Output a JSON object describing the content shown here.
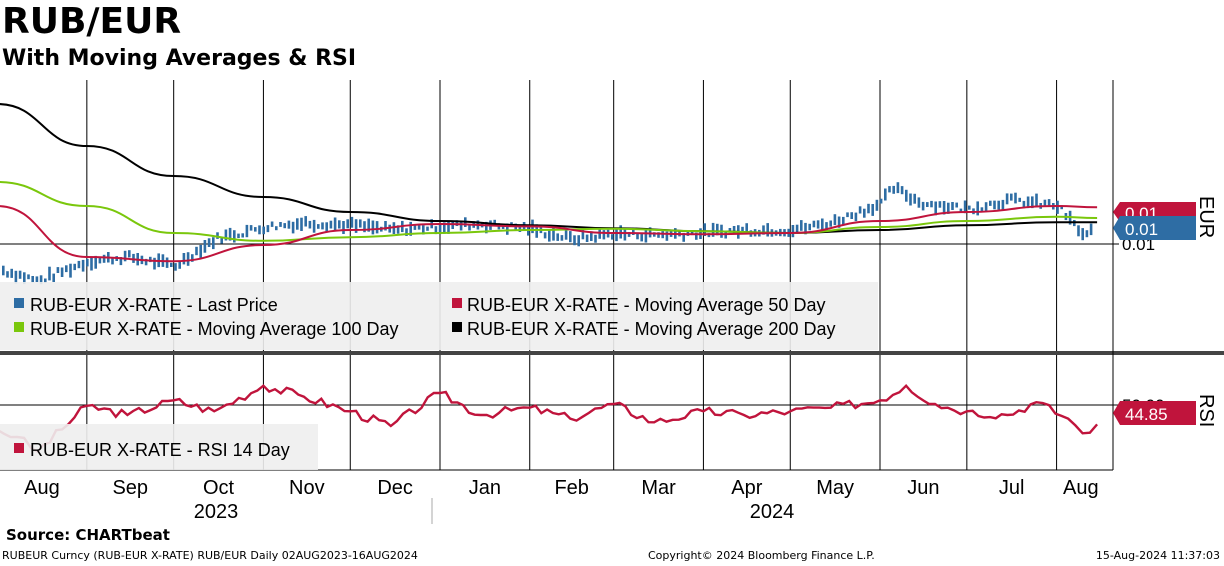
{
  "header": {
    "title": "RUB/EUR",
    "subtitle": "With Moving Averages & RSI"
  },
  "footer": {
    "source": "Source:  CHARTbeat",
    "security": "RUBEUR Curncy (RUB-EUR X-RATE) RUB/EUR  Daily 02AUG2023-16AUG2024",
    "copyright": "Copyright© 2024 Bloomberg Finance L.P.",
    "timestamp": "15-Aug-2024 11:37:03"
  },
  "chart_data": [
    {
      "type": "line",
      "panel": "price",
      "x_axis": {
        "months": [
          "Aug",
          "Sep",
          "Oct",
          "Nov",
          "Dec",
          "Jan",
          "Feb",
          "Mar",
          "Apr",
          "May",
          "Jun",
          "Jul",
          "Aug"
        ],
        "years": [
          "2023",
          "2024"
        ]
      },
      "y_axis": {
        "side": "right",
        "tick_labels": [
          "0.01"
        ],
        "unit_label": "EUR"
      },
      "grid": true,
      "legend_position": "bottom-left",
      "last_value_labels": [
        "0.01",
        "0.01"
      ],
      "series": [
        {
          "name": "RUB-EUR X-RATE - Last Price",
          "style": "bars",
          "color": "#2e6da4",
          "x": [
            "2023-08-01",
            "2023-08-15",
            "2023-09-01",
            "2023-09-15",
            "2023-10-01",
            "2023-10-15",
            "2023-11-01",
            "2023-11-15",
            "2023-12-01",
            "2023-12-15",
            "2024-01-01",
            "2024-01-15",
            "2024-02-01",
            "2024-02-15",
            "2024-03-01",
            "2024-03-15",
            "2024-04-01",
            "2024-04-15",
            "2024-05-01",
            "2024-05-15",
            "2024-06-01",
            "2024-06-05",
            "2024-06-15",
            "2024-07-01",
            "2024-07-15",
            "2024-08-01",
            "2024-08-10",
            "2024-08-15"
          ],
          "values": [
            0.00935,
            0.00915,
            0.00948,
            0.00955,
            0.0094,
            0.00985,
            0.01005,
            0.01012,
            0.01008,
            0.01,
            0.01006,
            0.0101,
            0.01002,
            0.00985,
            0.00994,
            0.00992,
            0.00995,
            0.01,
            0.01,
            0.01012,
            0.01045,
            0.0107,
            0.01045,
            0.01035,
            0.0105,
            0.0104,
            0.0099,
            0.01005
          ]
        },
        {
          "name": "RUB-EUR X-RATE - Moving Average 50 Day",
          "color": "#c0143c",
          "x": [
            "2023-08-01",
            "2023-09-01",
            "2023-10-01",
            "2023-11-01",
            "2023-12-01",
            "2024-01-01",
            "2024-02-01",
            "2024-03-01",
            "2024-04-01",
            "2024-05-01",
            "2024-06-01",
            "2024-07-01",
            "2024-08-01",
            "2024-08-15"
          ],
          "values": [
            0.0104,
            0.00955,
            0.00948,
            0.00975,
            0.01,
            0.0101,
            0.01006,
            0.00995,
            0.00993,
            0.00995,
            0.01015,
            0.0103,
            0.0104,
            0.01038
          ]
        },
        {
          "name": "RUB-EUR X-RATE - Moving Average 100 Day",
          "color": "#7ac70c",
          "x": [
            "2023-08-01",
            "2023-09-01",
            "2023-10-01",
            "2023-11-01",
            "2023-12-01",
            "2024-01-01",
            "2024-02-01",
            "2024-03-01",
            "2024-04-01",
            "2024-05-01",
            "2024-06-01",
            "2024-07-01",
            "2024-08-01",
            "2024-08-15"
          ],
          "values": [
            0.0108,
            0.0104,
            0.00995,
            0.00982,
            0.00988,
            0.00995,
            0.01,
            0.01002,
            0.00998,
            0.00995,
            0.01005,
            0.01015,
            0.01022,
            0.0102
          ]
        },
        {
          "name": "RUB-EUR X-RATE - Moving Average 200 Day",
          "color": "#000000",
          "x": [
            "2023-08-01",
            "2023-09-01",
            "2023-10-01",
            "2023-11-01",
            "2023-12-01",
            "2024-01-01",
            "2024-02-01",
            "2024-03-01",
            "2024-04-01",
            "2024-05-01",
            "2024-06-01",
            "2024-07-01",
            "2024-08-01",
            "2024-08-15"
          ],
          "values": [
            0.0121,
            0.0114,
            0.0109,
            0.01055,
            0.0103,
            0.01015,
            0.01008,
            0.01003,
            0.00998,
            0.00995,
            0.01,
            0.01008,
            0.01013,
            0.01013
          ]
        }
      ]
    },
    {
      "type": "line",
      "panel": "rsi",
      "y_axis": {
        "side": "right",
        "tick_labels": [
          "50.00"
        ],
        "unit_label": "RSI"
      },
      "legend_position": "bottom-left",
      "last_value_label": "44.85",
      "series": [
        {
          "name": "RUB-EUR X-RATE - RSI 14 Day",
          "color": "#c0143c",
          "x": [
            "2023-08-01",
            "2023-08-08",
            "2023-08-15",
            "2023-09-01",
            "2023-09-15",
            "2023-10-01",
            "2023-10-15",
            "2023-11-01",
            "2023-11-15",
            "2023-12-01",
            "2023-12-15",
            "2024-01-01",
            "2024-01-15",
            "2024-02-01",
            "2024-02-15",
            "2024-03-01",
            "2024-03-15",
            "2024-04-01",
            "2024-04-15",
            "2024-05-01",
            "2024-05-15",
            "2024-06-01",
            "2024-06-10",
            "2024-06-20",
            "2024-07-01",
            "2024-07-15",
            "2024-07-25",
            "2024-08-05",
            "2024-08-10",
            "2024-08-15"
          ],
          "values": [
            42,
            38,
            30,
            55,
            50,
            58,
            52,
            66,
            60,
            52,
            44,
            62,
            50,
            54,
            48,
            56,
            46,
            52,
            50,
            52,
            54,
            58,
            66,
            56,
            52,
            50,
            57,
            48,
            40,
            44.85
          ]
        }
      ]
    }
  ]
}
